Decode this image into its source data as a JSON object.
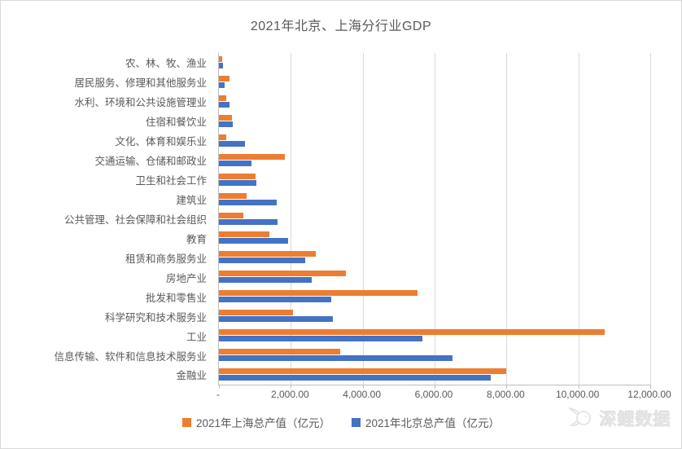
{
  "title": "2021年北京、上海分行业GDP",
  "watermark": {
    "text": "深鲤数据"
  },
  "colors": {
    "shanghai": "#ED7D31",
    "beijing": "#4472C4",
    "text": "#595959",
    "gridline": "#D9D9D9"
  },
  "chart_data": {
    "type": "bar",
    "orientation": "horizontal",
    "title": "2021年北京、上海分行业GDP",
    "categories": [
      "农、林、牧、渔业",
      "居民服务、修理和其他服务业",
      "水利、环境和公共设施管理业",
      "住宿和餐饮业",
      "文化、体育和娱乐业",
      "交通运输、仓储和邮政业",
      "卫生和社会工作",
      "建筑业",
      "公共管理、社会保障和社会组织",
      "教育",
      "租赁和商务服务业",
      "房地产业",
      "批发和零售业",
      "科学研究和技术服务业",
      "工业",
      "信息传输、软件和信息技术服务业",
      "金融业"
    ],
    "series": [
      {
        "name": "2021年上海总产值（亿元）",
        "color": "#ED7D31",
        "values": [
          98,
          300,
          196,
          370,
          205,
          1825,
          1030,
          780,
          675,
          1405,
          2705,
          3540,
          5530,
          2050,
          10740,
          3370,
          7990
        ]
      },
      {
        "name": "2021年北京总产值（亿元）",
        "color": "#4472C4",
        "values": [
          111,
          165,
          285,
          395,
          720,
          900,
          1050,
          1600,
          1630,
          1925,
          2400,
          2570,
          3120,
          3160,
          5660,
          6500,
          7570
        ]
      }
    ],
    "xlim": [
      0,
      12000
    ],
    "x_tick_step": 2000,
    "x_tick_labels": [
      "-",
      "2,000.00",
      "4,000.00",
      "6,000.00",
      "8,000.00",
      "10,000.00",
      "12,000.00"
    ],
    "grid": true,
    "legend_position": "bottom"
  }
}
